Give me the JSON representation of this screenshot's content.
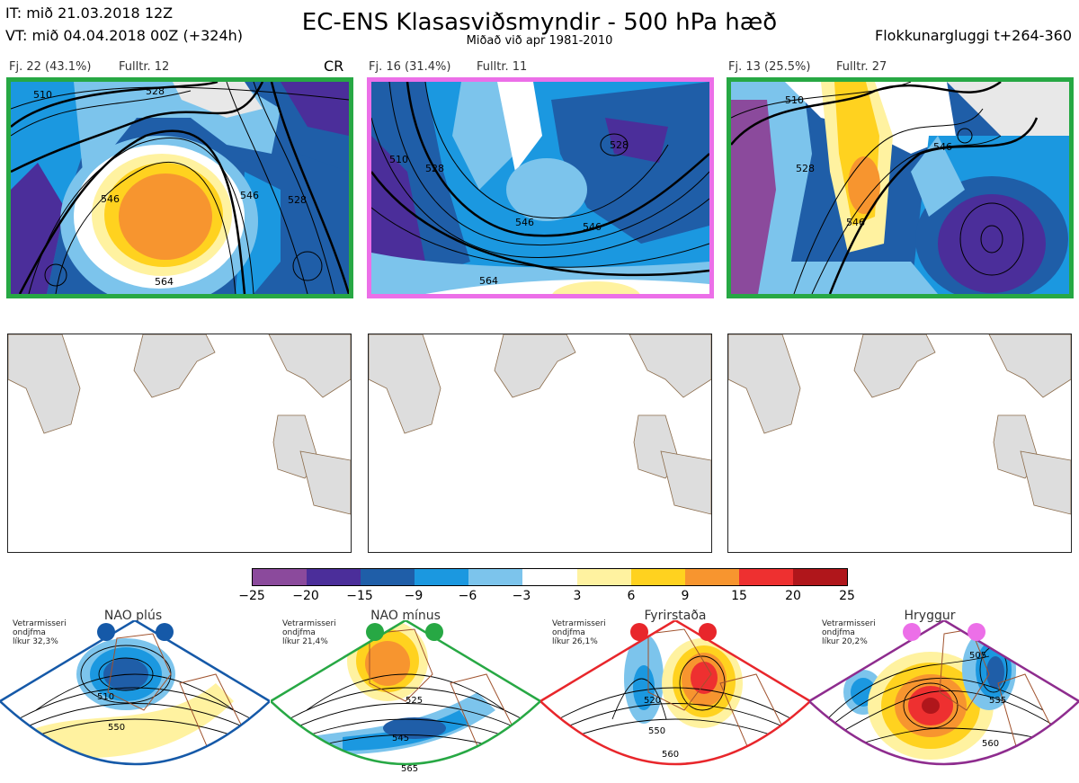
{
  "header": {
    "it": "IT: mið 21.03.2018 12Z",
    "vt": "VT: mið 04.04.2018 00Z  (+324h)",
    "title": "EC-ENS Klasasviðsmyndir - 500 hPa hæð",
    "subtitle": "Miðað við apr 1981-2010",
    "window": "Flokkunargluggi t+264-360"
  },
  "clusters": [
    {
      "label": "Fj. 22 (43.1%)",
      "rep": "Fulltr. 12",
      "tag": "CR",
      "frame_color": "#27a844"
    },
    {
      "label": "Fj. 16 (31.4%)",
      "rep": "Fulltr. 11",
      "tag": "",
      "frame_color": "#ec6fe8"
    },
    {
      "label": "Fj. 13 (25.5%)",
      "rep": "Fulltr. 27",
      "tag": "",
      "frame_color": "#27a844"
    }
  ],
  "contour_labels": [
    "510",
    "528",
    "546",
    "564",
    "528",
    "546",
    "510",
    "528",
    "546",
    "546",
    "528",
    "564",
    "510",
    "528",
    "546",
    "546"
  ],
  "colorbar": {
    "ticks": [
      "−25",
      "−20",
      "−15",
      "−9",
      "−6",
      "−3",
      "3",
      "6",
      "9",
      "15",
      "20",
      "25"
    ],
    "colors": [
      "#8b4a9c",
      "#4b2e9a",
      "#1f5ea8",
      "#1b98e0",
      "#7cc4ec",
      "#ffffff",
      "#fff2a0",
      "#ffd21f",
      "#f7952f",
      "#ee3030",
      "#b0161b"
    ]
  },
  "regimes": [
    {
      "name": "NAO plús",
      "season": "Vetrarmisseri\nondjfma\nlíkur 32,3%",
      "color": "#1559a8",
      "labels": [
        "510",
        "550"
      ]
    },
    {
      "name": "NAO mínus",
      "season": "Vetrarmisseri\nondjfma\nlíkur 21,4%",
      "color": "#27a844",
      "labels": [
        "525",
        "545",
        "565"
      ]
    },
    {
      "name": "Fyrirstaða",
      "season": "Vetrarmisseri\nondjfma\nlíkur 26,1%",
      "color": "#e8262b",
      "labels": [
        "520",
        "550",
        "560"
      ]
    },
    {
      "name": "Hryggur",
      "season": "Vetrarmisseri\nondjfma\nlíkur 20,2%",
      "color": "#ec6fe8",
      "labels": [
        "505",
        "535",
        "560"
      ]
    }
  ]
}
